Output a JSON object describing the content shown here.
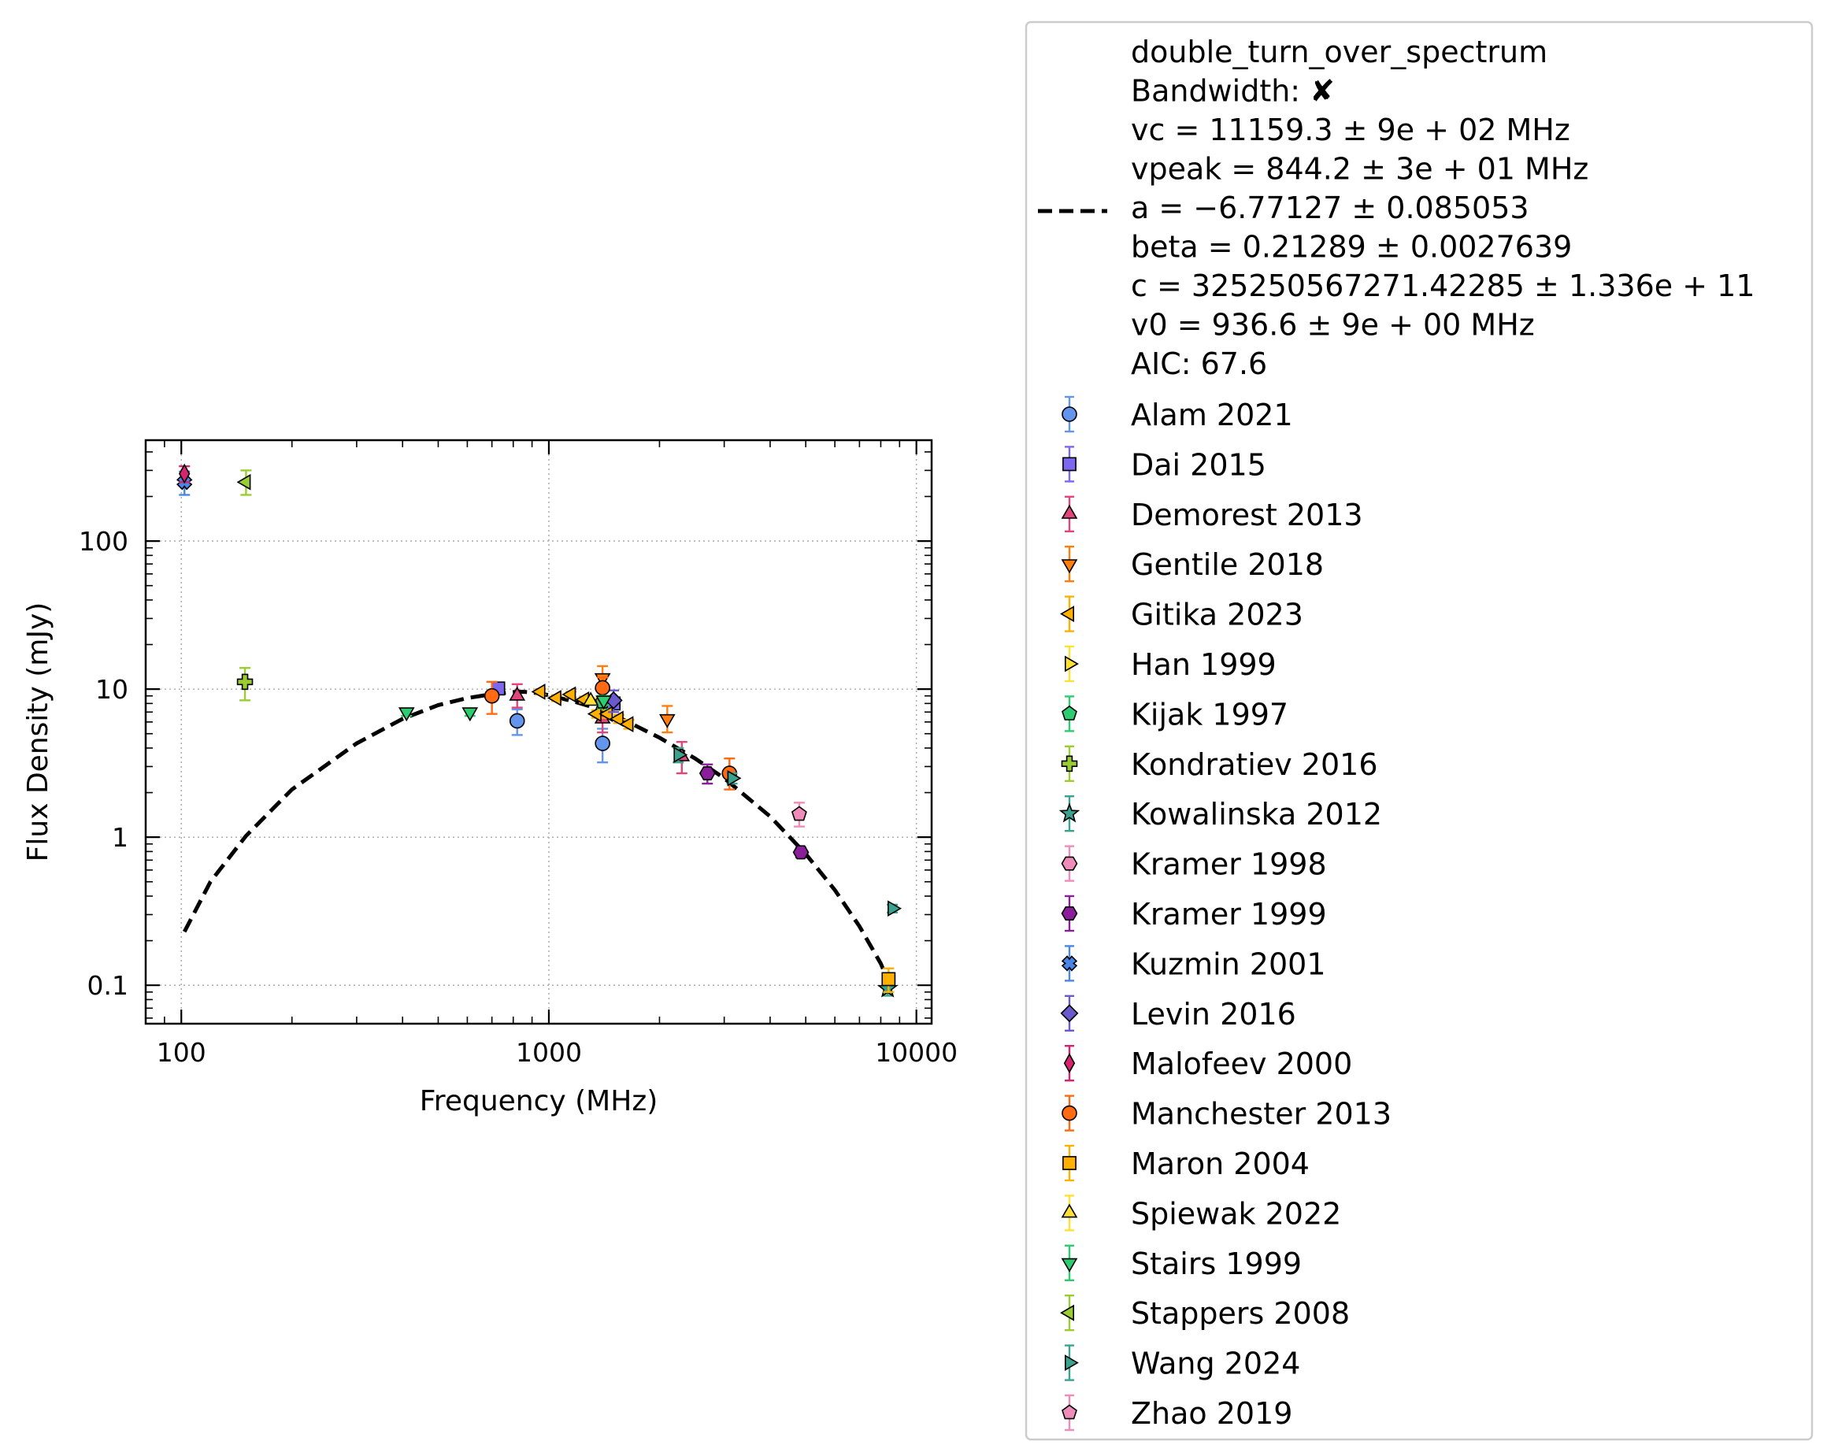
{
  "chart_data": {
    "type": "scatter",
    "title": "",
    "xlabel": "Frequency (MHz)",
    "ylabel": "Flux Density (mJy)",
    "xscale": "log",
    "yscale": "log",
    "xlim": [
      80,
      11000
    ],
    "ylim": [
      0.055,
      480
    ],
    "xticks": [
      100,
      1000,
      10000
    ],
    "xtick_labels": [
      "100",
      "1000",
      "10000"
    ],
    "yticks": [
      0.1,
      1,
      10,
      100
    ],
    "ytick_labels": [
      "0.1",
      "1",
      "10",
      "100"
    ],
    "grid": true,
    "legend_placement": "outside right",
    "fit": {
      "name": "double_turn_over_spectrum",
      "lines": [
        "double_turn_over_spectrum",
        "Bandwidth: ✘",
        "vc = 11159.3 ± 9e + 02 MHz",
        "vpeak = 844.2 ± 3e + 01 MHz",
        "a = −6.77127 ± 0.085053",
        "beta = 0.21289 ± 0.0027639",
        "c = 325250567271.42285 ± 1.336e + 11",
        "v0 = 936.6 ± 9e + 00 MHz",
        "AIC: 67.6"
      ],
      "x": [
        102,
        120,
        150,
        200,
        300,
        400,
        500,
        600,
        700,
        800,
        850,
        900,
        1000,
        1200,
        1400,
        1600,
        2000,
        2500,
        3000,
        4000,
        5000,
        6000,
        7000,
        8000,
        8400
      ],
      "y": [
        0.23,
        0.5,
        1.02,
        2.1,
        4.3,
        6.3,
        7.8,
        8.7,
        9.25,
        9.55,
        9.6,
        9.5,
        9.1,
        8.1,
        7.2,
        6.2,
        4.7,
        3.4,
        2.5,
        1.38,
        0.77,
        0.44,
        0.25,
        0.14,
        0.105
      ]
    },
    "series": [
      {
        "name": "Alam 2021",
        "marker": "circle",
        "color": "#6495ed",
        "points": [
          [
            820,
            6.1,
            4.9,
            7.3
          ],
          [
            1400,
            4.3,
            3.2,
            5.4
          ]
        ]
      },
      {
        "name": "Dai 2015",
        "marker": "square",
        "color": "#7b68ee",
        "points": [
          [
            728,
            10.1,
            9.3,
            10.9
          ],
          [
            1500,
            8.0,
            7.4,
            8.6
          ]
        ]
      },
      {
        "name": "Demorest 2013",
        "marker": "triangle-up",
        "color": "#e0457b",
        "points": [
          [
            820,
            9.0,
            7.5,
            10.8
          ],
          [
            1400,
            6.3,
            5.1,
            7.5
          ],
          [
            2300,
            3.5,
            2.7,
            4.4
          ]
        ]
      },
      {
        "name": "Gentile 2018",
        "marker": "triangle-down",
        "color": "#ff7f0e",
        "points": [
          [
            1400,
            11.9,
            9.9,
            14.3
          ],
          [
            2100,
            6.3,
            5.1,
            7.7
          ]
        ]
      },
      {
        "name": "Gitika 2023",
        "marker": "triangle-left",
        "color": "#ffb000",
        "points": [
          [
            950,
            9.6,
            9.2,
            10.0
          ],
          [
            1050,
            8.7,
            8.3,
            9.1
          ],
          [
            1150,
            9.2,
            8.8,
            9.6
          ],
          [
            1250,
            8.5,
            8.1,
            8.9
          ],
          [
            1350,
            6.8,
            6.4,
            7.2
          ],
          [
            1450,
            6.8,
            6.4,
            7.2
          ],
          [
            1550,
            6.3,
            5.9,
            6.7
          ],
          [
            1650,
            5.8,
            5.4,
            6.2
          ]
        ]
      },
      {
        "name": "Han 1999",
        "marker": "triangle-right",
        "color": "#ffe135",
        "points": []
      },
      {
        "name": "Kijak 1997",
        "marker": "pentagon",
        "color": "#2ecc71",
        "points": [
          [
            1400,
            8.2,
            7.4,
            9.0
          ]
        ]
      },
      {
        "name": "Kondratiev 2016",
        "marker": "plus",
        "color": "#9acd32",
        "points": [
          [
            149,
            11.2,
            8.4,
            13.9
          ]
        ]
      },
      {
        "name": "Kowalinska 2012",
        "marker": "star",
        "color": "#3aa38f",
        "points": [
          [
            8350,
            0.095,
            0.085,
            0.105
          ]
        ]
      },
      {
        "name": "Kramer 1998",
        "marker": "hexagon",
        "color": "#f08cba",
        "points": []
      },
      {
        "name": "Kramer 1999",
        "marker": "hexagon",
        "color": "#8b1f9b",
        "points": [
          [
            2700,
            2.7,
            2.3,
            3.1
          ],
          [
            4850,
            0.79,
            0.73,
            0.85
          ]
        ]
      },
      {
        "name": "Kuzmin 2001",
        "marker": "x",
        "color": "#4a86e8",
        "points": [
          [
            102,
            250,
            205,
            295
          ]
        ]
      },
      {
        "name": "Levin 2016",
        "marker": "diamond",
        "color": "#6a5acd",
        "points": [
          [
            1500,
            8.4,
            7.0,
            9.8
          ]
        ]
      },
      {
        "name": "Malofeev 2000",
        "marker": "thin-diamond",
        "color": "#d6246e",
        "points": [
          [
            102,
            285,
            250,
            320
          ]
        ]
      },
      {
        "name": "Manchester 2013",
        "marker": "circle",
        "color": "#ff6a13",
        "points": [
          [
            700,
            9.0,
            6.8,
            11.2
          ],
          [
            1400,
            10.2,
            8.4,
            12.0
          ],
          [
            3100,
            2.7,
            2.1,
            3.4
          ]
        ]
      },
      {
        "name": "Maron 2004",
        "marker": "square",
        "color": "#ffb000",
        "points": [
          [
            8400,
            0.11,
            0.09,
            0.13
          ]
        ]
      },
      {
        "name": "Spiewak 2022",
        "marker": "triangle-up",
        "color": "#ffe135",
        "points": [
          [
            1300,
            8.3,
            7.9,
            8.7
          ]
        ]
      },
      {
        "name": "Stairs 1999",
        "marker": "triangle-down",
        "color": "#2ecc71",
        "points": [
          [
            410,
            7.0,
            6.6,
            7.4
          ],
          [
            610,
            7.0,
            6.6,
            7.4
          ],
          [
            1410,
            8.4,
            7.8,
            9.0
          ]
        ]
      },
      {
        "name": "Stappers 2008",
        "marker": "triangle-left",
        "color": "#9acd32",
        "points": [
          [
            150,
            250,
            205,
            300
          ]
        ]
      },
      {
        "name": "Wang 2024",
        "marker": "triangle-right",
        "color": "#3aa38f",
        "points": [
          [
            2250,
            3.6,
            3.2,
            4.0
          ],
          [
            3150,
            2.5,
            2.3,
            2.7
          ],
          [
            8600,
            0.33,
            0.31,
            0.35
          ]
        ]
      },
      {
        "name": "Zhao 2019",
        "marker": "pentagon",
        "color": "#f08cba",
        "points": [
          [
            4800,
            1.43,
            1.18,
            1.71
          ]
        ]
      }
    ]
  }
}
